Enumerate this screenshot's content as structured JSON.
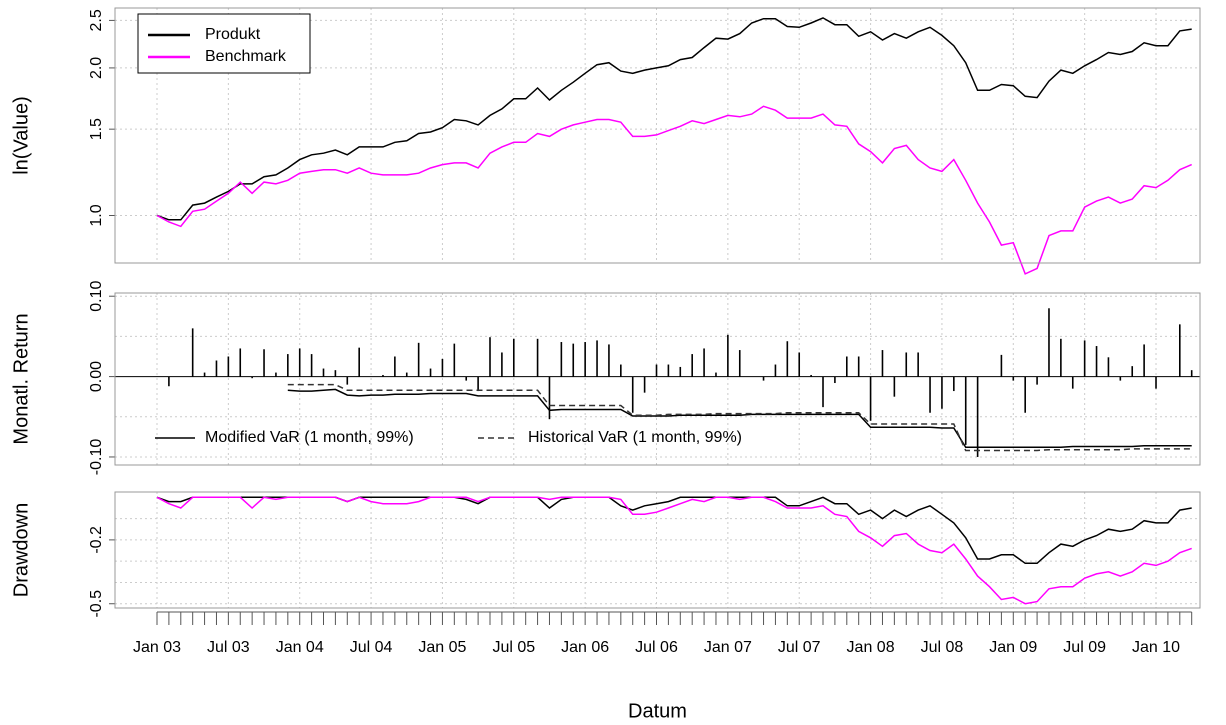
{
  "chart_data": [
    {
      "type": "line",
      "log": true,
      "ylabel": "ln(Value)",
      "ylim": [
        0.8,
        2.65
      ],
      "yticks": [
        {
          "value": 1,
          "label": "1.0"
        },
        1.5,
        {
          "value": 2,
          "label": "2.0"
        },
        2.5
      ],
      "grid": true,
      "legend": "topleft",
      "series": [
        {
          "name": "Produkt",
          "color": "#000000",
          "values": [
            1.0,
            0.98,
            0.98,
            1.05,
            1.06,
            1.09,
            1.12,
            1.16,
            1.16,
            1.2,
            1.21,
            1.25,
            1.3,
            1.33,
            1.34,
            1.36,
            1.33,
            1.38,
            1.38,
            1.38,
            1.41,
            1.42,
            1.47,
            1.48,
            1.51,
            1.57,
            1.56,
            1.53,
            1.6,
            1.65,
            1.73,
            1.73,
            1.82,
            1.72,
            1.8,
            1.87,
            1.95,
            2.03,
            2.05,
            1.97,
            1.95,
            1.98,
            2.0,
            2.02,
            2.08,
            2.1,
            2.2,
            2.3,
            2.29,
            2.35,
            2.47,
            2.52,
            2.52,
            2.43,
            2.42,
            2.47,
            2.53,
            2.45,
            2.45,
            2.32,
            2.37,
            2.28,
            2.35,
            2.3,
            2.37,
            2.42,
            2.33,
            2.22,
            2.05,
            1.8,
            1.8,
            1.85,
            1.84,
            1.75,
            1.74,
            1.88,
            1.98,
            1.95,
            2.02,
            2.08,
            2.15,
            2.13,
            2.16,
            2.25,
            2.22,
            2.22,
            2.38,
            2.4
          ]
        },
        {
          "name": "Benchmark",
          "color": "#ff00ff",
          "values": [
            1.0,
            0.97,
            0.95,
            1.02,
            1.03,
            1.07,
            1.11,
            1.17,
            1.11,
            1.17,
            1.16,
            1.18,
            1.22,
            1.23,
            1.24,
            1.24,
            1.22,
            1.25,
            1.22,
            1.21,
            1.21,
            1.21,
            1.22,
            1.25,
            1.27,
            1.28,
            1.28,
            1.25,
            1.34,
            1.38,
            1.41,
            1.41,
            1.47,
            1.45,
            1.5,
            1.53,
            1.55,
            1.57,
            1.57,
            1.55,
            1.45,
            1.45,
            1.46,
            1.49,
            1.52,
            1.56,
            1.54,
            1.57,
            1.6,
            1.59,
            1.61,
            1.67,
            1.64,
            1.58,
            1.58,
            1.58,
            1.61,
            1.53,
            1.52,
            1.4,
            1.35,
            1.28,
            1.37,
            1.39,
            1.3,
            1.25,
            1.23,
            1.3,
            1.18,
            1.06,
            0.97,
            0.87,
            0.88,
            0.76,
            0.78,
            0.91,
            0.93,
            0.93,
            1.04,
            1.07,
            1.09,
            1.06,
            1.08,
            1.15,
            1.14,
            1.18,
            1.24,
            1.27
          ]
        }
      ]
    },
    {
      "type": "bar",
      "ylabel": "Monatl. Return",
      "ylim": [
        -0.11,
        0.104
      ],
      "color": "#000000",
      "yticks": [
        {
          "value": 0.1,
          "label": "0.10"
        },
        {
          "value": 0,
          "label": "0.00"
        },
        {
          "value": -0.1,
          "label": "-0.10"
        }
      ],
      "ygrid": [
        -0.1,
        -0.05,
        0.05,
        0.1
      ],
      "grid": true,
      "legend": "bottomleft",
      "values": [
        0.0,
        -0.012,
        0.0,
        0.06,
        0.005,
        0.02,
        0.025,
        0.035,
        -0.002,
        0.034,
        0.005,
        0.028,
        0.035,
        0.028,
        0.01,
        0.008,
        -0.01,
        0.036,
        0.0,
        0.002,
        0.025,
        0.005,
        0.042,
        0.01,
        0.022,
        0.041,
        -0.005,
        -0.018,
        0.049,
        0.03,
        0.047,
        0.0,
        0.047,
        -0.053,
        0.043,
        0.041,
        0.043,
        0.045,
        0.04,
        0.015,
        -0.045,
        -0.02,
        0.015,
        0.015,
        0.012,
        0.028,
        0.035,
        0.005,
        0.052,
        0.033,
        0.0,
        -0.005,
        0.015,
        0.044,
        0.03,
        0.002,
        -0.038,
        -0.008,
        0.025,
        0.025,
        -0.055,
        0.033,
        -0.025,
        0.03,
        0.03,
        -0.045,
        -0.04,
        -0.018,
        -0.085,
        -0.1,
        0.0,
        0.027,
        -0.005,
        -0.045,
        -0.01,
        0.085,
        0.047,
        -0.015,
        0.045,
        0.038,
        0.024,
        -0.005,
        0.013,
        0.04,
        -0.015,
        0.0,
        0.065,
        0.008
      ],
      "series": [
        {
          "name": "Modified VaR (1 month, 99%)",
          "color": "#000000",
          "dash": false,
          "values": [
            null,
            null,
            null,
            null,
            null,
            null,
            null,
            null,
            null,
            null,
            null,
            -0.017,
            -0.018,
            -0.018,
            -0.017,
            -0.016,
            -0.023,
            -0.024,
            -0.023,
            -0.023,
            -0.022,
            -0.022,
            -0.022,
            -0.021,
            -0.021,
            -0.021,
            -0.021,
            -0.024,
            -0.024,
            -0.024,
            -0.024,
            -0.024,
            -0.024,
            -0.042,
            -0.041,
            -0.041,
            -0.041,
            -0.041,
            -0.041,
            -0.041,
            -0.049,
            -0.049,
            -0.049,
            -0.049,
            -0.048,
            -0.048,
            -0.048,
            -0.048,
            -0.048,
            -0.048,
            -0.047,
            -0.047,
            -0.047,
            -0.047,
            -0.047,
            -0.047,
            -0.047,
            -0.047,
            -0.047,
            -0.047,
            -0.063,
            -0.063,
            -0.063,
            -0.063,
            -0.063,
            -0.063,
            -0.064,
            -0.064,
            -0.088,
            -0.088,
            -0.088,
            -0.088,
            -0.088,
            -0.088,
            -0.088,
            -0.088,
            -0.088,
            -0.087,
            -0.087,
            -0.087,
            -0.087,
            -0.087,
            -0.087,
            -0.086,
            -0.086,
            -0.086,
            -0.086,
            -0.086
          ]
        },
        {
          "name": "Historical VaR (1 month, 99%)",
          "color": "#333333",
          "dash": true,
          "values": [
            null,
            null,
            null,
            null,
            null,
            null,
            null,
            null,
            null,
            null,
            null,
            -0.01,
            -0.01,
            -0.01,
            -0.01,
            -0.01,
            -0.017,
            -0.017,
            -0.017,
            -0.017,
            -0.017,
            -0.017,
            -0.017,
            -0.017,
            -0.017,
            -0.017,
            -0.017,
            -0.017,
            -0.017,
            -0.017,
            -0.017,
            -0.017,
            -0.017,
            -0.036,
            -0.036,
            -0.036,
            -0.036,
            -0.036,
            -0.036,
            -0.036,
            -0.048,
            -0.048,
            -0.048,
            -0.047,
            -0.047,
            -0.047,
            -0.047,
            -0.046,
            -0.046,
            -0.046,
            -0.046,
            -0.046,
            -0.046,
            -0.045,
            -0.045,
            -0.045,
            -0.045,
            -0.045,
            -0.045,
            -0.045,
            -0.059,
            -0.059,
            -0.059,
            -0.059,
            -0.059,
            -0.059,
            -0.059,
            -0.059,
            -0.092,
            -0.092,
            -0.092,
            -0.092,
            -0.092,
            -0.092,
            -0.092,
            -0.091,
            -0.091,
            -0.091,
            -0.091,
            -0.091,
            -0.091,
            -0.091,
            -0.09,
            -0.09,
            -0.09,
            -0.09,
            -0.09,
            -0.09
          ]
        }
      ]
    },
    {
      "type": "line",
      "ylabel": "Drawdown",
      "xlabel": "Datum",
      "ylim": [
        -0.52,
        0.025
      ],
      "yticks": [
        -0.5,
        -0.2
      ],
      "ygrid": [
        -0.5,
        -0.4,
        -0.3,
        -0.2,
        -0.1
      ],
      "grid": true,
      "categories": [
        "Jan 03",
        null,
        null,
        null,
        null,
        null,
        "Jul 03",
        null,
        null,
        null,
        null,
        null,
        "Jan 04",
        null,
        null,
        null,
        null,
        null,
        "Jul 04",
        null,
        null,
        null,
        null,
        null,
        "Jan 05",
        null,
        null,
        null,
        null,
        null,
        "Jul 05",
        null,
        null,
        null,
        null,
        null,
        "Jan 06",
        null,
        null,
        null,
        null,
        null,
        "Jul 06",
        null,
        null,
        null,
        null,
        null,
        "Jan 07",
        null,
        null,
        null,
        null,
        null,
        "Jul 07",
        null,
        null,
        null,
        null,
        null,
        "Jan 08",
        null,
        null,
        null,
        null,
        null,
        "Jul 08",
        null,
        null,
        null,
        null,
        null,
        "Jan 09",
        null,
        null,
        null,
        null,
        null,
        "Jul 09",
        null,
        null,
        null,
        null,
        null,
        "Jan 10",
        null,
        null,
        null
      ],
      "series": [
        {
          "name": "Produkt",
          "color": "#000000",
          "values": [
            0,
            -0.02,
            -0.02,
            0,
            0,
            0,
            0,
            0,
            0,
            0,
            0,
            0,
            0,
            0,
            0,
            0,
            -0.02,
            0,
            0,
            0,
            0,
            0,
            0,
            0,
            0,
            0,
            -0.01,
            -0.03,
            0,
            0,
            0,
            0,
            0,
            -0.05,
            -0.01,
            0,
            0,
            0,
            0,
            -0.04,
            -0.06,
            -0.04,
            -0.03,
            -0.02,
            0,
            0,
            0,
            0,
            0,
            0,
            0,
            0,
            0,
            -0.04,
            -0.04,
            -0.02,
            0,
            -0.03,
            -0.03,
            -0.08,
            -0.06,
            -0.1,
            -0.06,
            -0.09,
            -0.06,
            -0.04,
            -0.08,
            -0.12,
            -0.19,
            -0.29,
            -0.29,
            -0.27,
            -0.27,
            -0.31,
            -0.31,
            -0.26,
            -0.22,
            -0.23,
            -0.2,
            -0.18,
            -0.15,
            -0.16,
            -0.15,
            -0.11,
            -0.12,
            -0.12,
            -0.06,
            -0.05
          ]
        },
        {
          "name": "Benchmark",
          "color": "#ff00ff",
          "values": [
            0,
            -0.03,
            -0.05,
            0,
            0,
            0,
            0,
            0,
            -0.05,
            0,
            -0.01,
            0,
            0,
            0,
            0,
            0,
            -0.02,
            0,
            -0.02,
            -0.03,
            -0.03,
            -0.03,
            -0.02,
            0,
            0,
            0,
            0,
            -0.02,
            0,
            0,
            0,
            0,
            0,
            -0.01,
            0,
            0,
            0,
            0,
            0,
            -0.01,
            -0.08,
            -0.08,
            -0.07,
            -0.05,
            -0.03,
            -0.01,
            -0.02,
            0,
            0,
            -0.01,
            0,
            0,
            -0.02,
            -0.05,
            -0.05,
            -0.05,
            -0.04,
            -0.08,
            -0.09,
            -0.16,
            -0.19,
            -0.23,
            -0.18,
            -0.17,
            -0.22,
            -0.25,
            -0.26,
            -0.22,
            -0.29,
            -0.37,
            -0.42,
            -0.48,
            -0.47,
            -0.5,
            -0.49,
            -0.43,
            -0.42,
            -0.42,
            -0.38,
            -0.36,
            -0.35,
            -0.37,
            -0.35,
            -0.31,
            -0.32,
            -0.3,
            -0.26,
            -0.24
          ]
        }
      ]
    }
  ]
}
